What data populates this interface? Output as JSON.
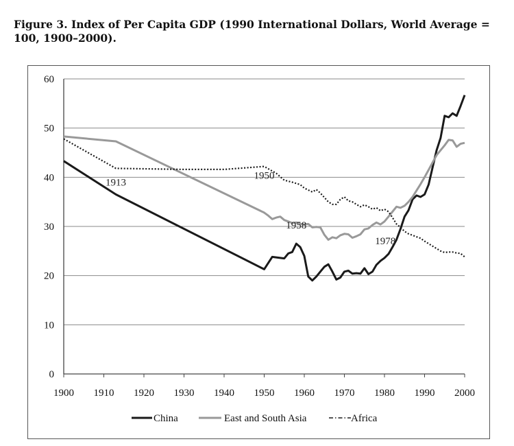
{
  "caption": "Figure 3. Index of Per Capita GDP (1990 International Dollars, World Average = 100, 1900–2000).",
  "chart_data": {
    "type": "line",
    "title": "Figure 3. Index of Per Capita GDP (1990 International Dollars, World Average = 100, 1900–2000).",
    "xlim": [
      1900,
      2000
    ],
    "ylim": [
      0,
      60
    ],
    "x_ticks": [
      1900,
      1910,
      1920,
      1930,
      1940,
      1950,
      1960,
      1970,
      1980,
      1990,
      2000
    ],
    "y_ticks": [
      0,
      10,
      20,
      30,
      40,
      50,
      60
    ],
    "grid": "horizontal",
    "legend": "bottom",
    "series": [
      {
        "name": "China",
        "color": "#1a1a1a",
        "style": "solid",
        "x": [
          1900,
          1913,
          1950,
          1952,
          1954,
          1955,
          1956,
          1957,
          1958,
          1959,
          1960,
          1961,
          1962,
          1963,
          1964,
          1965,
          1966,
          1967,
          1968,
          1969,
          1970,
          1971,
          1972,
          1973,
          1974,
          1975,
          1976,
          1977,
          1978,
          1979,
          1980,
          1981,
          1982,
          1983,
          1984,
          1985,
          1986,
          1987,
          1988,
          1989,
          1990,
          1991,
          1992,
          1993,
          1994,
          1995,
          1996,
          1997,
          1998,
          1999,
          2000
        ],
        "y": [
          43.3,
          36.5,
          21.3,
          23.8,
          23.6,
          23.5,
          24.5,
          24.8,
          26.5,
          25.8,
          24.0,
          19.8,
          19.0,
          19.8,
          20.8,
          21.8,
          22.3,
          20.8,
          19.2,
          19.6,
          20.8,
          21.0,
          20.4,
          20.5,
          20.4,
          21.5,
          20.3,
          20.8,
          22.2,
          23.0,
          23.6,
          24.4,
          25.8,
          27.3,
          29.5,
          32.0,
          33.3,
          35.5,
          36.3,
          36.0,
          36.5,
          38.5,
          42.0,
          45.5,
          48.0,
          52.5,
          52.2,
          53.0,
          52.5,
          54.5,
          56.7
        ]
      },
      {
        "name": "East and South Asia",
        "color": "#999999",
        "style": "solid",
        "x": [
          1900,
          1913,
          1950,
          1951,
          1952,
          1953,
          1954,
          1955,
          1956,
          1957,
          1958,
          1959,
          1960,
          1961,
          1962,
          1963,
          1964,
          1965,
          1966,
          1967,
          1968,
          1969,
          1970,
          1971,
          1972,
          1973,
          1974,
          1975,
          1976,
          1977,
          1978,
          1979,
          1980,
          1981,
          1982,
          1983,
          1984,
          1985,
          1986,
          1987,
          1988,
          1989,
          1990,
          1991,
          1992,
          1993,
          1994,
          1995,
          1996,
          1997,
          1998,
          1999,
          2000
        ],
        "y": [
          48.3,
          47.3,
          32.8,
          32.2,
          31.5,
          31.8,
          32.0,
          31.3,
          31.0,
          30.7,
          30.8,
          30.5,
          30.4,
          30.5,
          29.8,
          29.9,
          29.8,
          28.3,
          27.3,
          27.8,
          27.6,
          28.2,
          28.5,
          28.4,
          27.7,
          28.0,
          28.4,
          29.4,
          29.6,
          30.3,
          30.8,
          30.4,
          31.0,
          32.0,
          33.0,
          34.0,
          33.8,
          34.2,
          35.0,
          36.0,
          37.3,
          38.6,
          40.0,
          41.5,
          43.0,
          44.5,
          45.5,
          46.5,
          47.6,
          47.5,
          46.2,
          46.8,
          47.0
        ]
      },
      {
        "name": "Africa",
        "color": "#1a1a1a",
        "style": "dotted",
        "x": [
          1900,
          1913,
          1930,
          1940,
          1950,
          1953,
          1955,
          1957,
          1959,
          1960,
          1962,
          1963,
          1964,
          1966,
          1967,
          1968,
          1969,
          1970,
          1971,
          1972,
          1973,
          1974,
          1975,
          1976,
          1977,
          1978,
          1979,
          1980,
          1981,
          1982,
          1983,
          1984,
          1985,
          1986,
          1987,
          1988,
          1989,
          1990,
          1991,
          1992,
          1993,
          1994,
          1995,
          1996,
          1997,
          1998,
          1999,
          2000
        ],
        "y": [
          47.8,
          41.8,
          41.6,
          41.6,
          42.2,
          40.8,
          39.4,
          39.0,
          38.5,
          37.8,
          37.0,
          37.5,
          36.8,
          35.0,
          34.5,
          34.5,
          35.5,
          36.0,
          35.2,
          35.0,
          34.5,
          34.0,
          34.4,
          34.0,
          33.5,
          33.8,
          33.2,
          33.5,
          33.0,
          31.8,
          30.5,
          29.8,
          29.0,
          28.5,
          28.2,
          27.9,
          27.6,
          27.0,
          26.5,
          26.0,
          25.5,
          25.0,
          24.7,
          24.8,
          24.8,
          24.6,
          24.5,
          23.8
        ]
      }
    ],
    "annotations": [
      {
        "text": "1913",
        "x": 1913,
        "y": 41.8
      },
      {
        "text": "1950",
        "x": 1950,
        "y": 42.2
      },
      {
        "text": "1958",
        "x": 1958,
        "y": 26.5
      },
      {
        "text": "1978",
        "x": 1978,
        "y": 22.2
      }
    ]
  }
}
